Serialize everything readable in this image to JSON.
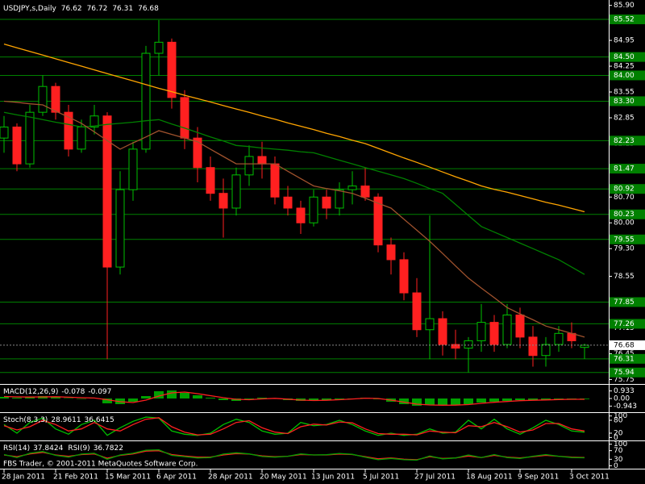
{
  "chart_data": [
    {
      "type": "candlestick",
      "title": "USDJPY,s,Daily",
      "ohlc": [
        76.62,
        76.72,
        76.31,
        76.68
      ],
      "up_color": "#00c000",
      "down_color": "#ff2020",
      "x": [
        0,
        4,
        8,
        12,
        16,
        20,
        24,
        28,
        32,
        36,
        40,
        44,
        48,
        52,
        56,
        60,
        64,
        68,
        72,
        76,
        80,
        84,
        88,
        92,
        96,
        100,
        104,
        108,
        112,
        116,
        120,
        124,
        128,
        132,
        136,
        140,
        144,
        148,
        152,
        156,
        160,
        164,
        168,
        172,
        176,
        180
      ],
      "open": [
        82.3,
        82.6,
        81.6,
        83.0,
        83.7,
        83.0,
        82.0,
        82.6,
        82.9,
        78.8,
        80.9,
        82.0,
        84.6,
        84.9,
        83.4,
        82.3,
        81.5,
        80.8,
        80.4,
        81.3,
        81.8,
        81.6,
        80.7,
        80.4,
        80.0,
        80.7,
        80.4,
        80.9,
        81.0,
        80.7,
        79.4,
        79.0,
        78.1,
        77.1,
        77.4,
        76.7,
        76.6,
        76.8,
        77.3,
        76.7,
        77.5,
        76.9,
        76.4,
        76.7,
        77.0,
        76.62
      ],
      "high": [
        82.9,
        82.7,
        83.2,
        84.0,
        83.8,
        83.2,
        82.8,
        83.2,
        83.0,
        81.4,
        82.2,
        84.8,
        85.5,
        85.0,
        83.6,
        82.6,
        81.8,
        81.2,
        81.5,
        82.1,
        82.2,
        81.8,
        81.0,
        80.6,
        80.9,
        80.9,
        81.1,
        81.4,
        81.5,
        80.8,
        79.6,
        79.2,
        78.5,
        80.2,
        77.6,
        77.1,
        76.9,
        77.8,
        77.5,
        77.8,
        77.7,
        77.2,
        76.9,
        77.2,
        77.3,
        76.72
      ],
      "low": [
        81.9,
        81.4,
        81.5,
        82.9,
        82.8,
        81.8,
        81.9,
        82.4,
        76.3,
        78.6,
        80.6,
        81.9,
        84.0,
        83.1,
        82.0,
        81.1,
        80.6,
        79.6,
        80.2,
        81.0,
        81.2,
        80.5,
        80.2,
        79.7,
        79.9,
        80.1,
        80.2,
        80.5,
        80.6,
        79.2,
        78.6,
        77.9,
        76.9,
        76.3,
        76.4,
        76.3,
        75.94,
        76.5,
        76.5,
        76.6,
        76.6,
        76.1,
        76.1,
        76.5,
        76.6,
        76.31
      ],
      "close": [
        82.6,
        81.6,
        83.0,
        83.7,
        83.0,
        82.0,
        82.6,
        82.9,
        78.8,
        80.9,
        82.0,
        84.6,
        84.9,
        83.4,
        82.3,
        81.5,
        80.8,
        80.4,
        81.3,
        81.8,
        81.6,
        80.7,
        80.4,
        80.0,
        80.7,
        80.4,
        80.9,
        81.0,
        80.7,
        79.4,
        79.0,
        78.1,
        77.1,
        77.4,
        76.7,
        76.6,
        76.8,
        77.3,
        76.7,
        77.5,
        76.9,
        76.4,
        76.7,
        77.0,
        76.8,
        76.68
      ],
      "series": [
        {
          "color": "#ffa500",
          "values": [
            84.85,
            84.75,
            84.65,
            84.55,
            84.45,
            84.35,
            84.25,
            84.15,
            84.05,
            83.95,
            83.85,
            83.75,
            83.65,
            83.56,
            83.46,
            83.37,
            83.28,
            83.18,
            83.09,
            83.0,
            82.9,
            82.81,
            82.71,
            82.62,
            82.53,
            82.43,
            82.34,
            82.24,
            82.15,
            82.02,
            81.89,
            81.76,
            81.64,
            81.51,
            81.38,
            81.25,
            81.13,
            81.0,
            80.91,
            80.83,
            80.74,
            80.65,
            80.56,
            80.48,
            80.39,
            80.3
          ]
        },
        {
          "color": "#008000",
          "values": [
            83.0,
            82.93,
            82.87,
            82.8,
            82.73,
            82.67,
            82.6,
            82.63,
            82.67,
            82.7,
            82.73,
            82.77,
            82.8,
            82.68,
            82.57,
            82.45,
            82.33,
            82.22,
            82.1,
            82.07,
            82.03,
            82.0,
            81.97,
            81.93,
            81.9,
            81.8,
            81.7,
            81.6,
            81.5,
            81.4,
            81.3,
            81.2,
            81.07,
            80.93,
            80.8,
            80.5,
            80.2,
            79.9,
            79.75,
            79.6,
            79.45,
            79.3,
            79.15,
            79.0,
            78.8,
            78.6
          ]
        },
        {
          "color": "#a0522d",
          "values": [
            83.3,
            83.27,
            83.23,
            83.2,
            83.03,
            82.87,
            82.7,
            82.47,
            82.23,
            82.0,
            82.17,
            82.33,
            82.5,
            82.4,
            82.3,
            82.2,
            82.0,
            81.8,
            81.6,
            81.6,
            81.6,
            81.6,
            81.4,
            81.2,
            81.0,
            80.93,
            80.87,
            80.8,
            80.67,
            80.53,
            80.4,
            80.1,
            79.8,
            79.5,
            79.17,
            78.83,
            78.5,
            78.23,
            77.97,
            77.7,
            77.53,
            77.37,
            77.2,
            77.1,
            77.0,
            76.9
          ]
        }
      ],
      "level_color": "#008000",
      "levels": [
        85.52,
        {
          "value": 84.5,
          "label": "84.50"
        },
        {
          "value": 84,
          "label": "84.00"
        },
        {
          "value": 83.3,
          "label": "83.30"
        },
        82.23,
        81.47,
        80.92,
        80.23,
        79.55,
        77.85,
        77.26,
        76.31,
        75.94
      ],
      "bid": 76.68,
      "ylim": [
        75.65,
        85.98
      ],
      "yticks": [
        {
          "value": 85.9,
          "label": "85.90"
        },
        84.95,
        84.25,
        83.55,
        82.85,
        82.15,
        81.45,
        {
          "value": 80.7,
          "label": "80.70"
        },
        {
          "value": 80,
          "label": "80.00"
        },
        {
          "value": 79.3,
          "label": "79.30"
        },
        78.55,
        77.85,
        77.15,
        76.45,
        75.75
      ],
      "xlim": [
        -1,
        184
      ],
      "xticks": [
        {
          "value": 0,
          "label": "28 Jan 2011"
        },
        {
          "value": 16,
          "label": "21 Feb 2011"
        },
        {
          "value": 32,
          "label": "15 Mar 2011"
        },
        {
          "value": 48,
          "label": "6 Apr 2011"
        },
        {
          "value": 64,
          "label": "28 Apr 2011"
        },
        {
          "value": 80,
          "label": "20 May 2011"
        },
        {
          "value": 96,
          "label": "13 Jun 2011"
        },
        {
          "value": 112,
          "label": "5 Jul 2011"
        },
        {
          "value": 128,
          "label": "27 Jul 2011"
        },
        {
          "value": 144,
          "label": "18 Aug 2011"
        },
        {
          "value": 160,
          "label": "9 Sep 2011"
        },
        {
          "value": 176,
          "label": "3 Oct 2011"
        }
      ]
    },
    {
      "type": "macd",
      "title": "MACD(12,26,9)",
      "readings": [
        -0.078,
        -0.097
      ],
      "histogram": {
        "color": "#00a000",
        "values": [
          0.2,
          0.1,
          0.15,
          0.3,
          0.2,
          0.05,
          0.0,
          0.05,
          -0.6,
          -0.7,
          -0.4,
          0.3,
          0.9,
          1.0,
          0.7,
          0.4,
          0.1,
          -0.2,
          -0.3,
          -0.1,
          0.1,
          0.0,
          -0.2,
          -0.3,
          -0.25,
          -0.2,
          -0.1,
          0.0,
          0.1,
          -0.1,
          -0.4,
          -0.7,
          -0.9,
          -0.8,
          -0.85,
          -0.8,
          -0.7,
          -0.5,
          -0.4,
          -0.3,
          -0.2,
          -0.2,
          -0.15,
          -0.1,
          -0.08,
          -0.08
        ]
      },
      "series": [
        {
          "color": "#ff2020",
          "values": [
            0.25,
            0.2,
            0.18,
            0.2,
            0.22,
            0.16,
            0.1,
            0.06,
            -0.15,
            -0.4,
            -0.5,
            -0.2,
            0.3,
            0.7,
            0.8,
            0.6,
            0.35,
            0.1,
            -0.1,
            -0.15,
            -0.05,
            0.02,
            -0.08,
            -0.2,
            -0.25,
            -0.22,
            -0.15,
            -0.06,
            0.04,
            0.0,
            -0.2,
            -0.45,
            -0.7,
            -0.8,
            -0.83,
            -0.82,
            -0.75,
            -0.6,
            -0.47,
            -0.37,
            -0.27,
            -0.22,
            -0.18,
            -0.13,
            -0.1,
            -0.1
          ]
        }
      ],
      "ylim": [
        -1.6,
        1.6
      ],
      "yticks": [
        0.933,
        {
          "value": 0,
          "label": "0.00"
        },
        -0.943
      ]
    },
    {
      "type": "line",
      "title": "Stoch(8,3,3)",
      "readings": [
        28.9611,
        36.6415
      ],
      "series": [
        {
          "color": "#00c000",
          "values": [
            60,
            20,
            70,
            90,
            40,
            15,
            60,
            80,
            10,
            45,
            75,
            95,
            90,
            30,
            15,
            10,
            20,
            60,
            85,
            70,
            30,
            15,
            20,
            70,
            55,
            60,
            80,
            60,
            30,
            10,
            20,
            10,
            15,
            40,
            20,
            25,
            80,
            40,
            85,
            40,
            15,
            45,
            80,
            60,
            30,
            25
          ]
        },
        {
          "color": "#ff2020",
          "values": [
            55,
            35,
            50,
            80,
            60,
            30,
            40,
            70,
            40,
            30,
            60,
            85,
            92,
            50,
            25,
            12,
            15,
            40,
            70,
            78,
            45,
            25,
            18,
            50,
            62,
            58,
            72,
            68,
            40,
            18,
            15,
            15,
            12,
            30,
            25,
            22,
            55,
            50,
            70,
            50,
            25,
            35,
            65,
            65,
            40,
            30
          ]
        }
      ],
      "ylim": [
        -10,
        110
      ],
      "yticks": [
        100,
        80,
        20,
        0
      ]
    },
    {
      "type": "line",
      "title": "RSI(14)",
      "readings": [
        37.8424
      ],
      "title2": "RSI(9)",
      "readings2": [
        36.7822
      ],
      "annotation": "FBS Trader, © 2001-2011 MetaQuotes Software Corp.",
      "series": [
        {
          "color": "#ff2020",
          "values": [
            50,
            42,
            55,
            62,
            50,
            44,
            52,
            55,
            35,
            48,
            55,
            68,
            70,
            52,
            45,
            40,
            40,
            50,
            56,
            54,
            46,
            42,
            44,
            52,
            50,
            50,
            54,
            52,
            42,
            32,
            36,
            30,
            28,
            42,
            34,
            36,
            45,
            38,
            48,
            40,
            36,
            42,
            48,
            44,
            40,
            38
          ]
        },
        {
          "color": "#00a000",
          "values": [
            52,
            38,
            58,
            66,
            48,
            40,
            54,
            58,
            30,
            50,
            58,
            72,
            74,
            48,
            42,
            36,
            38,
            54,
            60,
            55,
            43,
            40,
            44,
            55,
            50,
            51,
            57,
            53,
            40,
            28,
            34,
            28,
            26,
            45,
            32,
            36,
            50,
            38,
            52,
            38,
            34,
            44,
            52,
            44,
            38,
            37
          ]
        }
      ],
      "ylim": [
        -10,
        110
      ],
      "yticks": [
        100,
        70,
        30,
        0
      ]
    }
  ]
}
